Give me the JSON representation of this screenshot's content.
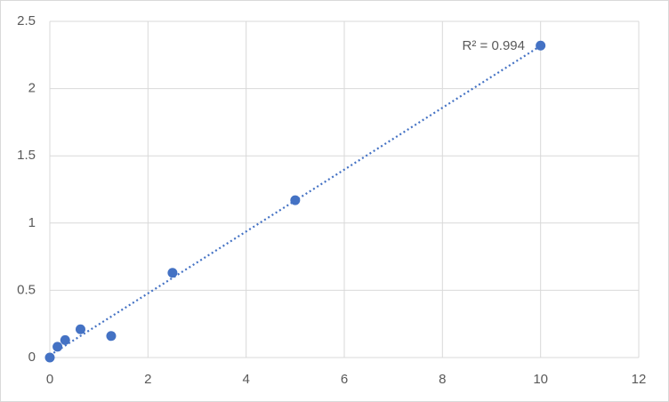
{
  "chart_data": {
    "type": "scatter",
    "x": [
      0,
      0.156,
      0.3125,
      0.625,
      1.25,
      2.5,
      5,
      10
    ],
    "values": [
      0,
      0.08,
      0.13,
      0.21,
      0.16,
      0.63,
      1.17,
      2.32
    ],
    "color": "#4472c4",
    "trendline": "linear",
    "annotation": "R² = 0.994",
    "xlim": [
      0,
      12
    ],
    "xticks": [
      0,
      2,
      4,
      6,
      8,
      10,
      12
    ],
    "ylim": [
      0,
      2.5
    ],
    "yticks": [
      0,
      0.5,
      1,
      1.5,
      2,
      2.5
    ],
    "grid": true
  }
}
